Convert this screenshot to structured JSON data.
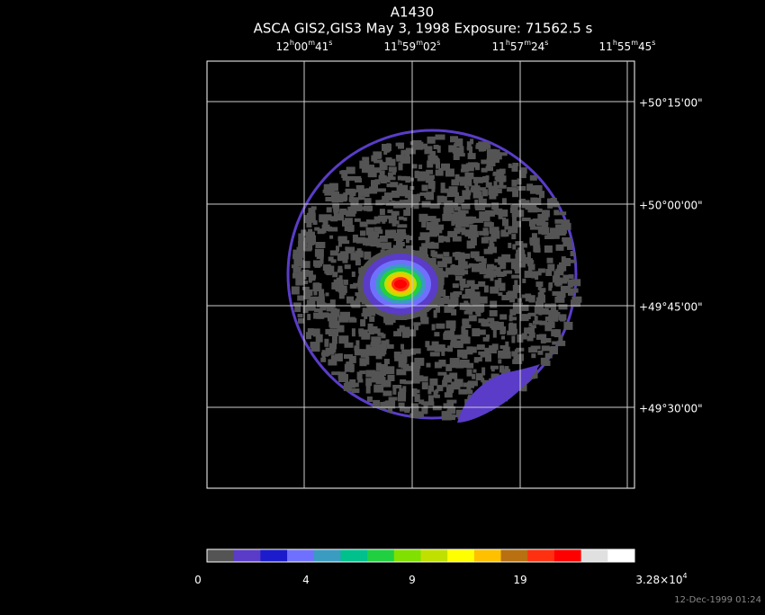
{
  "header": {
    "title": "A1430",
    "subtitle": "ASCA GIS2,GIS3 May 3, 1998 Exposure: 71562.5 s"
  },
  "ra_labels": [
    [
      "12",
      "h",
      "00",
      "m",
      "41",
      "s"
    ],
    [
      "11",
      "h",
      "59",
      "m",
      "02",
      "s"
    ],
    [
      "11",
      "h",
      "57",
      "m",
      "24",
      "s"
    ],
    [
      "11",
      "h",
      "55",
      "m",
      "45",
      "s"
    ]
  ],
  "dec_labels": [
    "+50°15'00\"",
    "+50°00'00\"",
    "+49°45'00\"",
    "+49°30'00\""
  ],
  "colorbar": {
    "colors": [
      "#545454",
      "#5a3cc8",
      "#1c1ccc",
      "#7070ff",
      "#3a9cc0",
      "#00c08c",
      "#20d040",
      "#80e000",
      "#c0e000",
      "#ffff00",
      "#ffc000",
      "#b87010",
      "#ff3010",
      "#ff0000",
      "#e0e0e0",
      "#ffffff"
    ],
    "labels": [
      [
        "0"
      ],
      [
        "4"
      ],
      [
        "9"
      ],
      [
        "19"
      ],
      [
        "3.28×10",
        "4"
      ]
    ]
  },
  "footer": {
    "timestamp": "12-Dec-1999 01:24"
  }
}
